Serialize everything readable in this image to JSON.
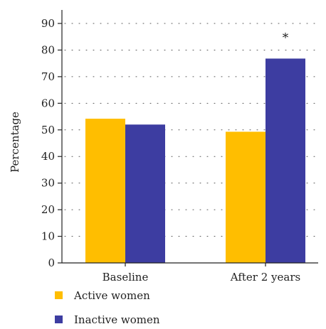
{
  "chart_data": {
    "type": "bar",
    "title": "",
    "xlabel": "",
    "ylabel": "Percentage",
    "ylim": [
      0,
      90
    ],
    "yticks": [
      0,
      10,
      20,
      30,
      40,
      50,
      60,
      70,
      80,
      90
    ],
    "grid": "dotted-horizontal",
    "legend_position": "bottom-left",
    "categories": [
      "Baseline",
      "After 2 years"
    ],
    "series": [
      {
        "name": "Active women",
        "color": "#FFBE00",
        "values": [
          54.2,
          49.3
        ]
      },
      {
        "name": "Inactive women",
        "color": "#3D3DA1",
        "values": [
          52.0,
          76.8
        ]
      }
    ],
    "annotations": [
      {
        "text": "*",
        "category_index": 1,
        "series_index": 1
      }
    ]
  }
}
